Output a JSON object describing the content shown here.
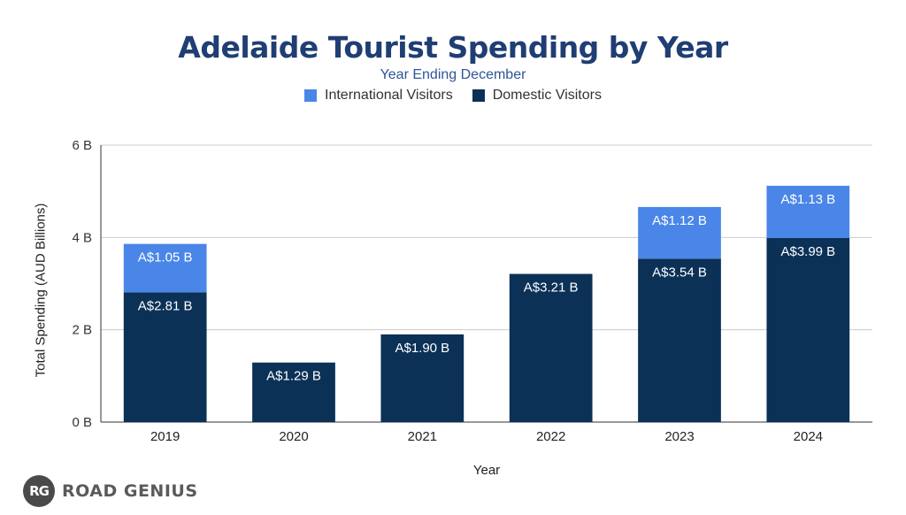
{
  "chart_data": {
    "type": "bar",
    "stacked": true,
    "title": "Adelaide Tourist Spending by Year",
    "subtitle": "Year Ending December",
    "xlabel": "Year",
    "ylabel": "Total Spending (AUD Billions)",
    "categories": [
      "2019",
      "2020",
      "2021",
      "2022",
      "2023",
      "2024"
    ],
    "series": [
      {
        "name": "Domestic Visitors",
        "color": "#0b3157",
        "values": [
          2.81,
          1.29,
          1.9,
          3.21,
          3.54,
          3.99
        ],
        "labels": [
          "A$2.81 B",
          "A$1.29 B",
          "A$1.90 B",
          "A$3.21 B",
          "A$3.54 B",
          "A$3.99 B"
        ]
      },
      {
        "name": "International Visitors",
        "color": "#4a86e8",
        "values": [
          1.05,
          null,
          null,
          null,
          1.12,
          1.13
        ],
        "labels": [
          "A$1.05 B",
          null,
          null,
          null,
          "A$1.12 B",
          "A$1.13 B"
        ]
      }
    ],
    "ylim": [
      0,
      6
    ],
    "yticks": [
      0,
      2,
      4,
      6
    ],
    "ytick_labels": [
      "0 B",
      "2 B",
      "4 B",
      "6 B"
    ],
    "grid": true,
    "legend": "top-center"
  },
  "legend_items": [
    {
      "label": "International Visitors",
      "color": "#4a86e8"
    },
    {
      "label": "Domestic Visitors",
      "color": "#0b3157"
    }
  ],
  "brand": {
    "badge": "RG",
    "name": "ROAD GENIUS"
  }
}
